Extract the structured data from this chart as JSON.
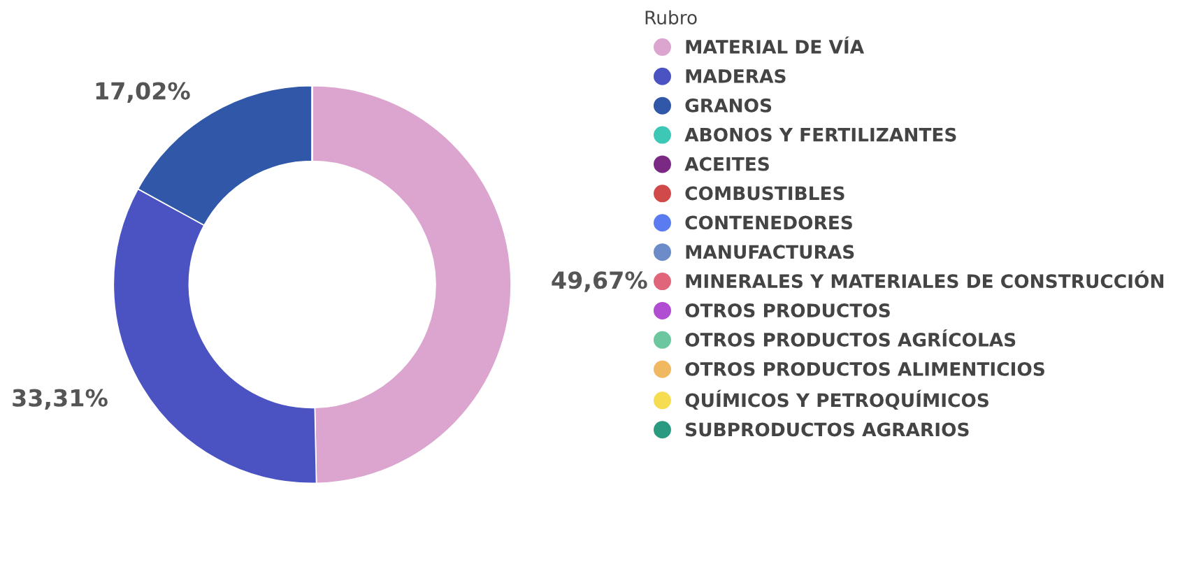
{
  "chart_data": {
    "type": "donut",
    "legend_title": "Rubro",
    "legend": "right",
    "categories": [
      "MATERIAL DE VÍA",
      "MADERAS",
      "GRANOS",
      "ABONOS Y FERTILIZANTES",
      "ACEITES",
      "COMBUSTIBLES",
      "CONTENEDORES",
      "MANUFACTURAS",
      "MINERALES Y MATERIALES DE CONSTRUCCIÓN",
      "OTROS PRODUCTOS",
      "OTROS PRODUCTOS AGRÍCOLAS",
      "OTROS PRODUCTOS ALIMENTICIOS",
      "QUÍMICOS Y PETROQUÍMICOS",
      "SUBPRODUCTOS AGRARIOS"
    ],
    "values": [
      49.67,
      33.31,
      17.02,
      0,
      0,
      0,
      0,
      0,
      0,
      0,
      0,
      0,
      0,
      0
    ],
    "value_labels": [
      "49,67%",
      "33,31%",
      "17,02%",
      null,
      null,
      null,
      null,
      null,
      null,
      null,
      null,
      null,
      null,
      null
    ],
    "colors": [
      "#dca5cf",
      "#4b53c3",
      "#3158a8",
      "#3cc8b4",
      "#7b2a84",
      "#d14a4a",
      "#5a7cf0",
      "#6b8cc8",
      "#e0657a",
      "#b04dd0",
      "#6cc79f",
      "#f0b860",
      "#f5dc50",
      "#2a9a80"
    ]
  }
}
